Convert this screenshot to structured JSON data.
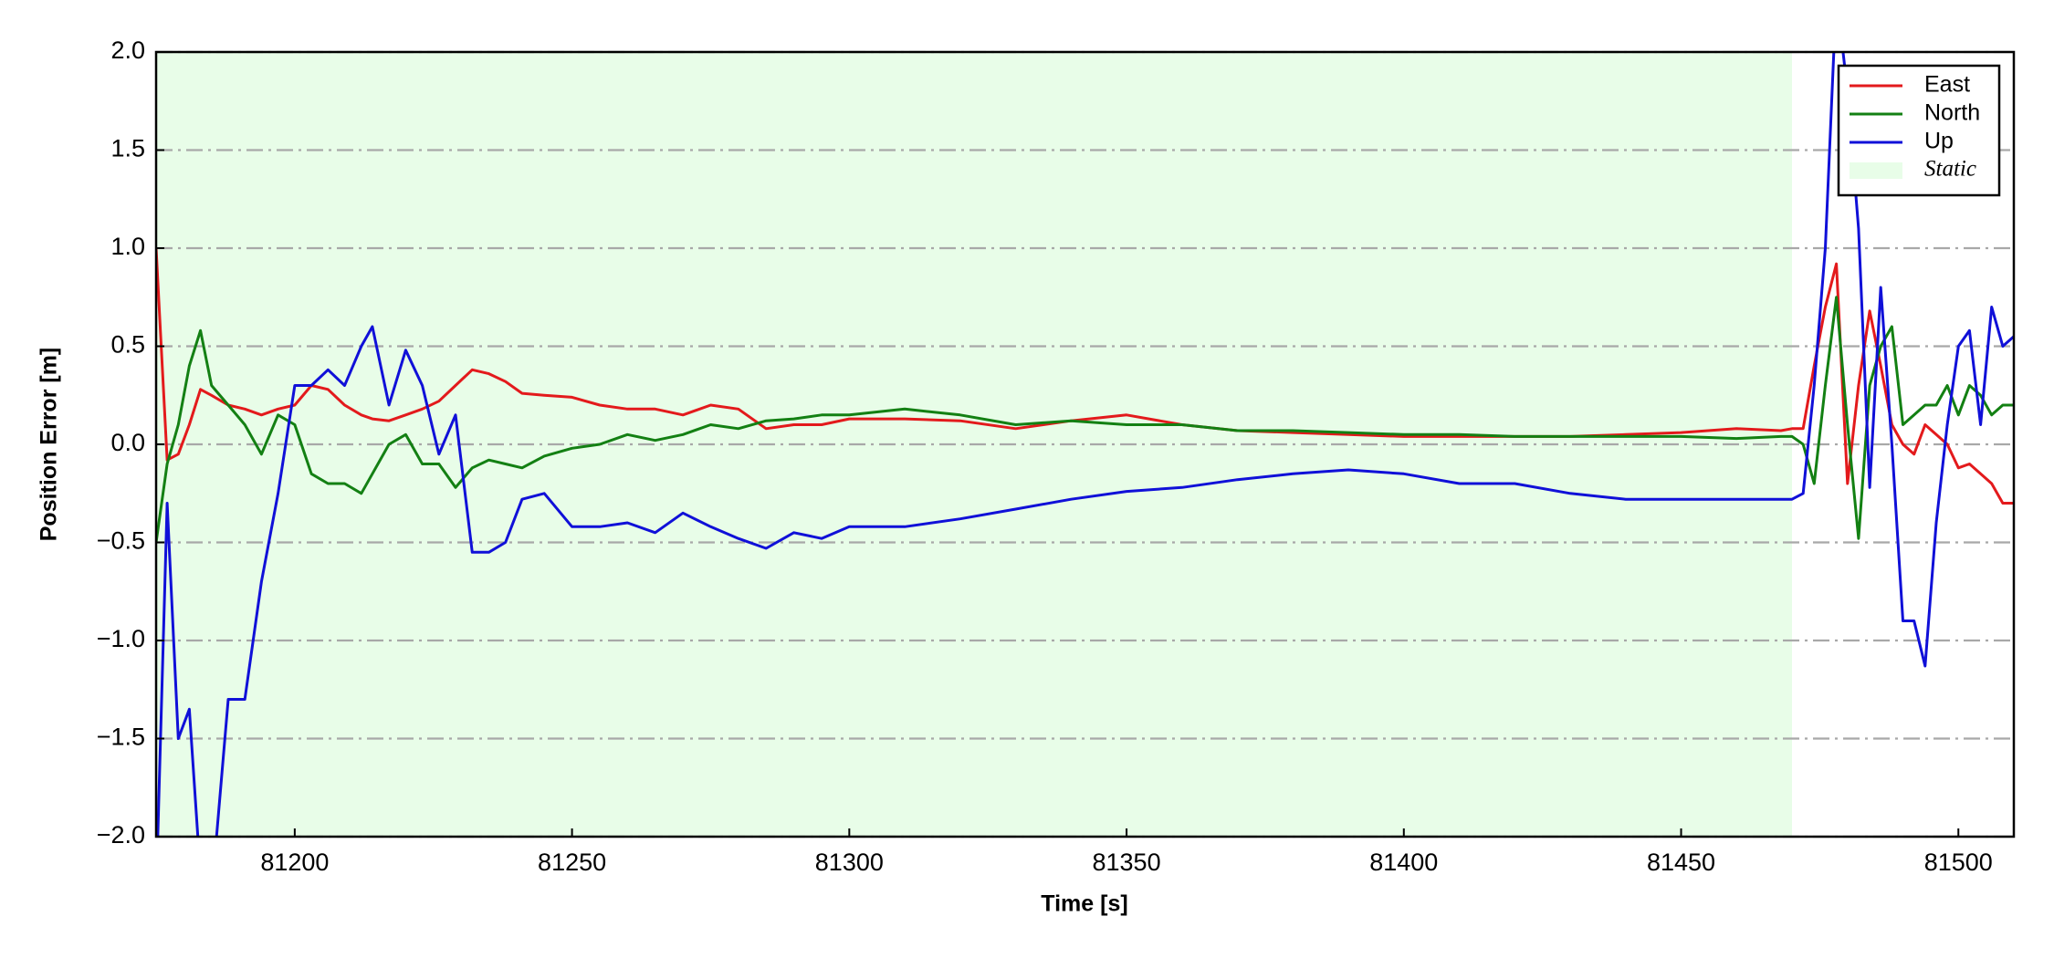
{
  "chart_data": {
    "type": "line",
    "xlabel": "Time [s]",
    "ylabel": "Position Error [m]",
    "x": [
      81175,
      81177,
      81179,
      81181,
      81183,
      81185,
      81188,
      81191,
      81194,
      81197,
      81200,
      81203,
      81206,
      81209,
      81212,
      81214,
      81217,
      81220,
      81223,
      81226,
      81229,
      81232,
      81235,
      81238,
      81241,
      81245,
      81250,
      81255,
      81260,
      81265,
      81270,
      81275,
      81280,
      81285,
      81290,
      81295,
      81300,
      81310,
      81320,
      81330,
      81340,
      81350,
      81360,
      81370,
      81380,
      81390,
      81400,
      81410,
      81420,
      81430,
      81440,
      81450,
      81460,
      81468,
      81470,
      81472,
      81474,
      81476,
      81478,
      81480,
      81482,
      81484,
      81486,
      81488,
      81490,
      81492,
      81494,
      81496,
      81498,
      81500,
      81502,
      81504,
      81506,
      81508,
      81510
    ],
    "series": [
      {
        "name": "East",
        "color": "#e31a1c",
        "values": [
          1.0,
          -0.08,
          -0.05,
          0.1,
          0.28,
          0.25,
          0.2,
          0.18,
          0.15,
          0.18,
          0.2,
          0.3,
          0.28,
          0.2,
          0.15,
          0.13,
          0.12,
          0.15,
          0.18,
          0.22,
          0.3,
          0.38,
          0.36,
          0.32,
          0.26,
          0.25,
          0.24,
          0.2,
          0.18,
          0.18,
          0.15,
          0.2,
          0.18,
          0.08,
          0.1,
          0.1,
          0.13,
          0.13,
          0.12,
          0.08,
          0.12,
          0.15,
          0.1,
          0.07,
          0.06,
          0.05,
          0.04,
          0.04,
          0.04,
          0.04,
          0.05,
          0.06,
          0.08,
          0.07,
          0.08,
          0.08,
          0.4,
          0.7,
          0.92,
          -0.2,
          0.3,
          0.68,
          0.4,
          0.1,
          0.0,
          -0.05,
          0.1,
          0.05,
          0.0,
          -0.12,
          -0.1,
          -0.15,
          -0.2,
          -0.3,
          -0.3
        ]
      },
      {
        "name": "North",
        "color": "#138013",
        "values": [
          -0.5,
          -0.1,
          0.1,
          0.4,
          0.58,
          0.3,
          0.2,
          0.1,
          -0.05,
          0.15,
          0.1,
          -0.15,
          -0.2,
          -0.2,
          -0.25,
          -0.15,
          0.0,
          0.05,
          -0.1,
          -0.1,
          -0.22,
          -0.12,
          -0.08,
          -0.1,
          -0.12,
          -0.06,
          -0.02,
          0.0,
          0.05,
          0.02,
          0.05,
          0.1,
          0.08,
          0.12,
          0.13,
          0.15,
          0.15,
          0.18,
          0.15,
          0.1,
          0.12,
          0.1,
          0.1,
          0.07,
          0.07,
          0.06,
          0.05,
          0.05,
          0.04,
          0.04,
          0.04,
          0.04,
          0.03,
          0.04,
          0.04,
          0.0,
          -0.2,
          0.3,
          0.75,
          0.1,
          -0.48,
          0.3,
          0.5,
          0.6,
          0.1,
          0.15,
          0.2,
          0.2,
          0.3,
          0.15,
          0.3,
          0.25,
          0.15,
          0.2,
          0.2
        ]
      },
      {
        "name": "Up",
        "color": "#1010d8",
        "values": [
          -2.3,
          -0.3,
          -1.5,
          -1.35,
          -2.2,
          -2.3,
          -1.3,
          -1.3,
          -0.7,
          -0.25,
          0.3,
          0.3,
          0.38,
          0.3,
          0.5,
          0.6,
          0.2,
          0.48,
          0.3,
          -0.05,
          0.15,
          -0.55,
          -0.55,
          -0.5,
          -0.28,
          -0.25,
          -0.42,
          -0.42,
          -0.4,
          -0.45,
          -0.35,
          -0.42,
          -0.48,
          -0.53,
          -0.45,
          -0.48,
          -0.42,
          -0.42,
          -0.38,
          -0.33,
          -0.28,
          -0.24,
          -0.22,
          -0.18,
          -0.15,
          -0.13,
          -0.15,
          -0.2,
          -0.2,
          -0.25,
          -0.28,
          -0.28,
          -0.28,
          -0.28,
          -0.28,
          -0.25,
          0.3,
          1.0,
          2.3,
          1.8,
          1.1,
          -0.22,
          0.8,
          0.0,
          -0.9,
          -0.9,
          -1.13,
          -0.4,
          0.1,
          0.5,
          0.58,
          0.1,
          0.7,
          0.5,
          0.55
        ]
      }
    ],
    "spans": [
      {
        "name": "Static",
        "start": 81175,
        "end": 81470,
        "color": "#e8fde8"
      }
    ],
    "xlim": [
      81175,
      81510
    ],
    "xticks": [
      81200,
      81250,
      81300,
      81350,
      81400,
      81450,
      81500
    ],
    "ylim": [
      -2.0,
      2.0
    ],
    "yticks": [
      {
        "value": -2.0,
        "label": "−2.0"
      },
      {
        "value": -1.5,
        "label": "−1.5"
      },
      {
        "value": -1.0,
        "label": "−1.0"
      },
      {
        "value": -0.5,
        "label": "−0.5"
      },
      {
        "value": 0.0,
        "label": "0.0"
      },
      {
        "value": 0.5,
        "label": "0.5"
      },
      {
        "value": 1.0,
        "label": "1.0"
      },
      {
        "value": 1.5,
        "label": "1.5"
      },
      {
        "value": 2.0,
        "label": "2.0"
      }
    ],
    "grid": true,
    "legend": "upper right"
  }
}
